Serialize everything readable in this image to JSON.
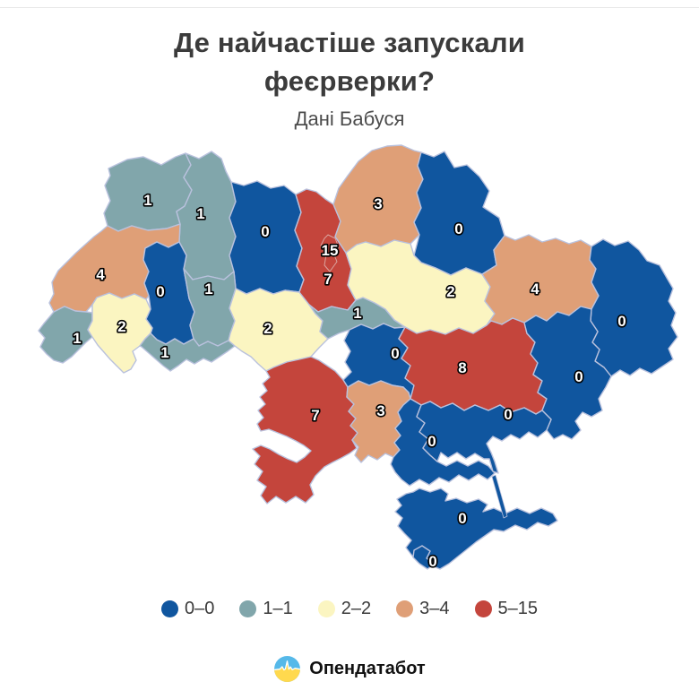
{
  "page": {
    "background": "#ffffff",
    "top_divider_color": "#e7e7e7"
  },
  "header": {
    "title_line1": "Де найчастіше запускали",
    "title_line2": "феєрверки?",
    "subtitle": "Дані Бабуся"
  },
  "chart_data": {
    "type": "choropleth",
    "title": "Де найчастіше запускали феєрверки?",
    "subtitle": "Дані Бабуся",
    "value_range": [
      0,
      15
    ],
    "map_border_color": "#b9c1dd",
    "inner_city_border_color": "#dba49e",
    "label_style": {
      "fill": "#ffffff",
      "outline": "#000000"
    },
    "legend": {
      "position": "bottom",
      "items": [
        {
          "label": "0–0",
          "color": "#10569f"
        },
        {
          "label": "1–1",
          "color": "#81a6ab"
        },
        {
          "label": "2–2",
          "color": "#fbf5c1"
        },
        {
          "label": "3–4",
          "color": "#df9f77"
        },
        {
          "label": "5–15",
          "color": "#c4453c"
        }
      ]
    },
    "regions": [
      {
        "name": "volyn",
        "value": 1,
        "bucket": 1
      },
      {
        "name": "rivne",
        "value": 1,
        "bucket": 1
      },
      {
        "name": "zhytomyr",
        "value": 0,
        "bucket": 0
      },
      {
        "name": "lviv",
        "value": 4,
        "bucket": 3
      },
      {
        "name": "ternopil",
        "value": 0,
        "bucket": 0
      },
      {
        "name": "khmelnytskyi",
        "value": 1,
        "bucket": 1
      },
      {
        "name": "zakarpattia",
        "value": 1,
        "bucket": 1
      },
      {
        "name": "ivano-frankivsk",
        "value": 2,
        "bucket": 2
      },
      {
        "name": "chernivtsi",
        "value": 1,
        "bucket": 1
      },
      {
        "name": "vinnytsia",
        "value": 2,
        "bucket": 2
      },
      {
        "name": "kyiv-oblast",
        "value": 7,
        "bucket": 4
      },
      {
        "name": "kyiv-city",
        "value": 15,
        "bucket": 4,
        "inner": true
      },
      {
        "name": "chernihiv",
        "value": 3,
        "bucket": 3
      },
      {
        "name": "sumy",
        "value": 0,
        "bucket": 0
      },
      {
        "name": "cherkasy",
        "value": 1,
        "bucket": 1
      },
      {
        "name": "poltava",
        "value": 2,
        "bucket": 2
      },
      {
        "name": "kharkiv",
        "value": 4,
        "bucket": 3
      },
      {
        "name": "luhansk",
        "value": 0,
        "bucket": 0
      },
      {
        "name": "kirovohrad",
        "value": 0,
        "bucket": 0
      },
      {
        "name": "dnipropetrovsk",
        "value": 8,
        "bucket": 4
      },
      {
        "name": "donetsk",
        "value": 0,
        "bucket": 0
      },
      {
        "name": "odesa",
        "value": 7,
        "bucket": 4
      },
      {
        "name": "mykolaiv",
        "value": 3,
        "bucket": 3
      },
      {
        "name": "kherson",
        "value": 0,
        "bucket": 0
      },
      {
        "name": "zaporizhzhia",
        "value": 0,
        "bucket": 0
      },
      {
        "name": "crimea",
        "value": 0,
        "bucket": 0
      },
      {
        "name": "sevastopol",
        "value": 0,
        "bucket": 0
      }
    ]
  },
  "footer": {
    "logo_text": "Опендатабот",
    "logo_colors": {
      "top": "#56b9e9",
      "bottom": "#ffd94e",
      "wave": "#ffffff"
    }
  }
}
